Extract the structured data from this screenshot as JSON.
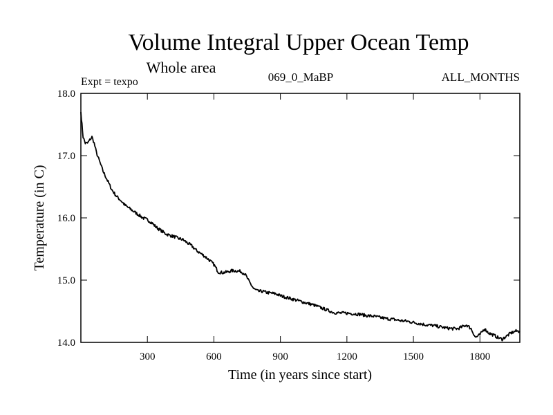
{
  "chart_data": {
    "type": "line",
    "title": "Volume Integral Upper Ocean Temp",
    "subtitle": "Whole area",
    "expt_label": "Expt = texpo",
    "run_label": "069_0_MaBP",
    "period_label": "ALL_MONTHS",
    "xlabel": "Time (in years since start)",
    "ylabel": "Temperature (in C)",
    "xlim": [
      0,
      1980
    ],
    "ylim": [
      14.0,
      18.0
    ],
    "x_ticks": [
      300,
      600,
      900,
      1200,
      1500,
      1800
    ],
    "x_tick_labels": [
      "300",
      "600",
      "900",
      "1200",
      "1500",
      "1800"
    ],
    "y_ticks": [
      14.0,
      15.0,
      16.0,
      17.0,
      18.0
    ],
    "y_tick_labels": [
      "14.0",
      "15.0",
      "16.0",
      "17.0",
      "18.0"
    ],
    "grid": false,
    "series": [
      {
        "name": "Volume integral upper ocean temperature",
        "color": "#000000",
        "x": [
          0,
          5,
          10,
          20,
          30,
          40,
          50,
          60,
          70,
          80,
          90,
          100,
          120,
          140,
          160,
          180,
          200,
          220,
          240,
          260,
          280,
          300,
          320,
          340,
          360,
          380,
          400,
          420,
          440,
          460,
          480,
          500,
          520,
          540,
          560,
          580,
          600,
          620,
          640,
          660,
          680,
          700,
          720,
          740,
          760,
          780,
          800,
          820,
          840,
          860,
          880,
          900,
          930,
          960,
          990,
          1020,
          1050,
          1080,
          1110,
          1140,
          1170,
          1200,
          1230,
          1260,
          1290,
          1320,
          1350,
          1380,
          1410,
          1440,
          1470,
          1500,
          1530,
          1560,
          1590,
          1620,
          1650,
          1680,
          1700,
          1720,
          1740,
          1760,
          1780,
          1800,
          1820,
          1840,
          1860,
          1880,
          1900,
          1920,
          1940,
          1960,
          1980
        ],
        "values": [
          17.7,
          17.5,
          17.3,
          17.2,
          17.2,
          17.25,
          17.3,
          17.2,
          17.05,
          16.95,
          16.85,
          16.75,
          16.6,
          16.45,
          16.35,
          16.28,
          16.2,
          16.15,
          16.1,
          16.05,
          16.0,
          15.97,
          15.92,
          15.85,
          15.8,
          15.75,
          15.72,
          15.7,
          15.67,
          15.65,
          15.6,
          15.55,
          15.48,
          15.43,
          15.38,
          15.32,
          15.25,
          15.13,
          15.12,
          15.13,
          15.15,
          15.15,
          15.14,
          15.1,
          14.97,
          14.86,
          14.82,
          14.82,
          14.8,
          14.79,
          14.78,
          14.75,
          14.72,
          14.69,
          14.66,
          14.63,
          14.6,
          14.56,
          14.52,
          14.48,
          14.47,
          14.47,
          14.46,
          14.45,
          14.43,
          14.42,
          14.4,
          14.38,
          14.37,
          14.35,
          14.34,
          14.32,
          14.3,
          14.28,
          14.27,
          14.25,
          14.23,
          14.22,
          14.22,
          14.25,
          14.28,
          14.22,
          14.08,
          14.12,
          14.22,
          14.15,
          14.12,
          14.08,
          14.05,
          14.1,
          14.15,
          14.18,
          14.18
        ]
      }
    ]
  }
}
